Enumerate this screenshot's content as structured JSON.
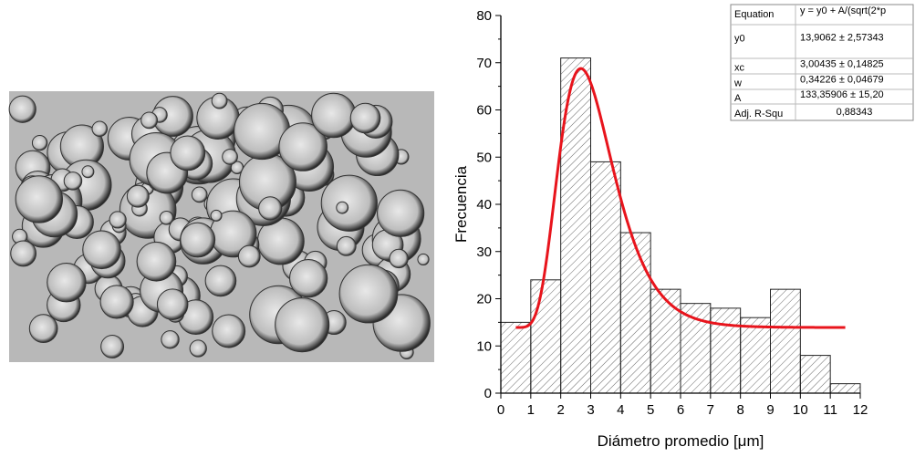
{
  "chart_data": {
    "type": "histogram",
    "xlabel": "Diámetro promedio [μm]",
    "ylabel": "Frecuencia",
    "bins": [
      0,
      1,
      2,
      3,
      4,
      5,
      6,
      7,
      8,
      9,
      10,
      11,
      12
    ],
    "values": [
      15,
      24,
      71,
      49,
      34,
      22,
      19,
      18,
      16,
      22,
      8,
      2
    ],
    "color": "#555555",
    "xlim": [
      0,
      12
    ],
    "xticks": [
      0,
      1,
      2,
      3,
      4,
      5,
      6,
      7,
      8,
      9,
      10,
      11,
      12
    ],
    "ylim": [
      0,
      80
    ],
    "yticks": [
      0,
      10,
      20,
      30,
      40,
      50,
      60,
      70,
      80
    ],
    "fit": {
      "y0": 13.9062,
      "xc": 3.00435,
      "w": 0.34226,
      "A": 133.35906,
      "range": [
        0.5,
        11.5
      ],
      "color": "#e8141c"
    },
    "fit_table": [
      [
        "Equation",
        "y = y0 + A/(sqrt(2*p"
      ],
      [
        "y0",
        "13,9062 ± 2,57343"
      ],
      [
        "xc",
        "3,00435 ± 0,14825"
      ],
      [
        "w",
        "0,34226 ± 0,04679"
      ],
      [
        "A",
        "133,35906 ± 15,20"
      ],
      [
        "Adj. R-Squ",
        "0,88343"
      ]
    ]
  }
}
